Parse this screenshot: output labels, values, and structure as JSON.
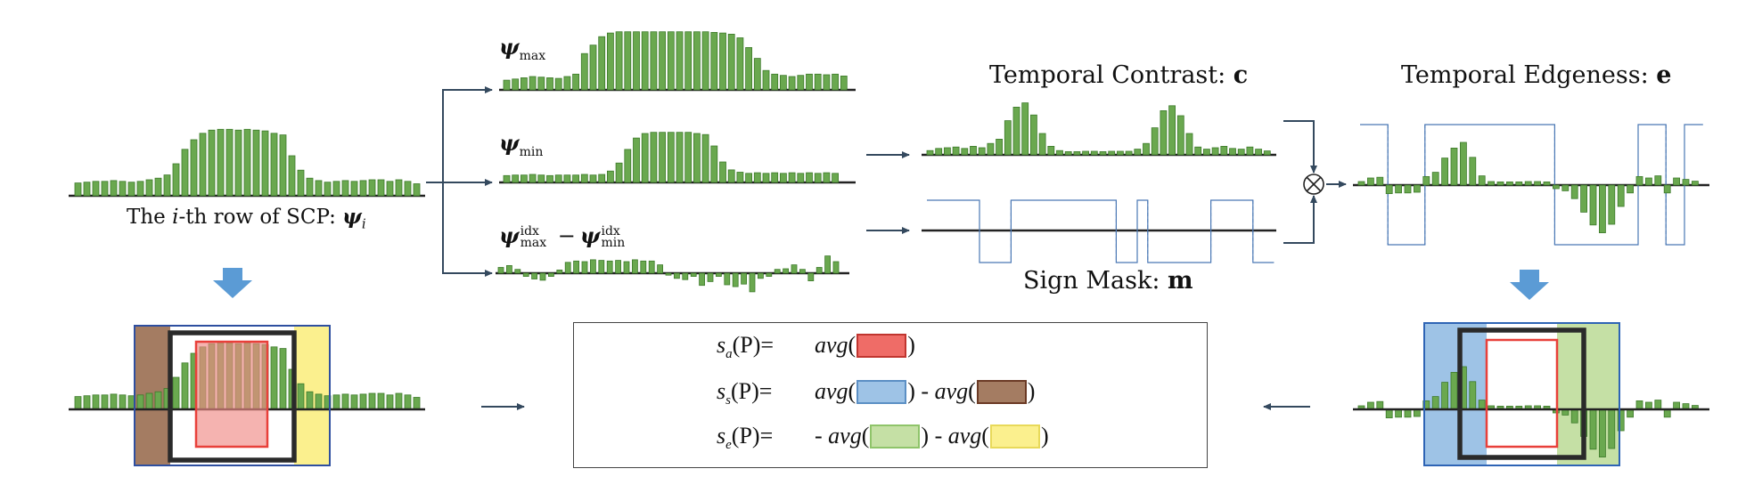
{
  "labels": {
    "row_caption_prefix": "The ",
    "row_caption_i": "i",
    "row_caption_suffix": "-th row of SCP: ",
    "row_caption_psi": "ψ",
    "row_caption_psi_sub": "i",
    "psi_symbol": "ψ",
    "psi_max_sub": "max",
    "psi_min_sub": "min",
    "psi_idx_sup": "idx",
    "minus": "−",
    "temporal_contrast": "Temporal Contrast: ",
    "temporal_contrast_symbol": "c",
    "temporal_edgeness": "Temporal Edgeness: ",
    "temporal_edgeness_symbol": "e",
    "sign_mask": "Sign Mask: ",
    "sign_mask_symbol": "m",
    "otimes": "⊗"
  },
  "formulas": {
    "sa_lhs_s": "s",
    "sa_lhs_sub": "a",
    "ss_lhs_sub": "s",
    "se_lhs_sub": "e",
    "lhs_arg": "(P)=",
    "avg": "avg",
    "open": "(",
    "close": ")",
    "minus": " - ",
    "neg": "- "
  },
  "colors": {
    "bar_green": "#6aa84f",
    "bar_stroke": "#3d7a2a",
    "arrow_dark": "#34495e",
    "arrow_blue": "#5b9bd5",
    "mask_line": "#4a78b5",
    "red_box": "#e8403a",
    "red_fill": "#f08a86",
    "blue_fill": "#9ec3e6",
    "blue_edge": "#2e64b5",
    "brown_fill": "#a47c62",
    "green_fill": "#c5e0a5",
    "yellow_fill": "#fbf08e",
    "dark_box": "#2a2a2a"
  },
  "signals": {
    "psi_row": [
      1.6,
      1.7,
      1.8,
      1.8,
      1.9,
      1.8,
      1.7,
      1.8,
      2.0,
      2.2,
      2.6,
      4.0,
      5.8,
      7.0,
      7.8,
      8.2,
      8.3,
      8.3,
      8.2,
      8.3,
      8.2,
      8.1,
      7.8,
      7.6,
      5.0,
      3.2,
      2.2,
      1.9,
      1.7,
      1.8,
      1.9,
      1.8,
      1.9,
      2.0,
      2.0,
      1.8,
      2.0,
      1.8,
      1.5
    ],
    "psi_max": [
      1.6,
      1.8,
      2.0,
      2.2,
      2.1,
      2.0,
      1.9,
      2.2,
      2.6,
      6.0,
      7.4,
      8.8,
      9.4,
      9.6,
      9.6,
      9.6,
      9.6,
      9.6,
      9.6,
      9.6,
      9.6,
      9.6,
      9.6,
      9.6,
      9.5,
      9.4,
      9.2,
      8.6,
      7.0,
      5.2,
      3.2,
      2.6,
      2.4,
      2.2,
      2.4,
      2.6,
      2.6,
      2.5,
      2.6,
      2.3
    ],
    "psi_min": [
      1.2,
      1.3,
      1.3,
      1.4,
      1.3,
      1.2,
      1.3,
      1.3,
      1.3,
      1.4,
      1.3,
      1.4,
      2.0,
      3.4,
      5.8,
      7.8,
      8.6,
      8.8,
      8.8,
      8.8,
      8.8,
      8.8,
      8.6,
      8.4,
      6.4,
      3.6,
      2.2,
      1.8,
      1.6,
      1.7,
      1.6,
      1.7,
      1.6,
      1.7,
      1.6,
      1.7,
      1.6,
      1.7,
      1.6
    ],
    "psi_idx": [
      1.8,
      2.4,
      1.2,
      -1.0,
      -1.8,
      -2.2,
      -1.0,
      1.0,
      3.4,
      3.8,
      3.6,
      4.2,
      4.0,
      3.8,
      4.0,
      3.6,
      4.2,
      3.8,
      3.8,
      2.6,
      -0.6,
      -1.6,
      -2.0,
      -1.0,
      -3.8,
      -2.6,
      -1.0,
      -3.6,
      -4.2,
      -3.4,
      -5.8,
      -1.6,
      -1.0,
      1.2,
      1.4,
      2.6,
      1.2,
      -2.4,
      1.8,
      5.4,
      3.6
    ],
    "contrast": [
      1.2,
      1.8,
      2.0,
      2.2,
      1.8,
      2.4,
      2.0,
      3.2,
      4.4,
      9.6,
      13.4,
      14.6,
      11.2,
      6.0,
      2.4,
      1.2,
      0.9,
      0.9,
      1.0,
      1.0,
      0.9,
      1.0,
      1.0,
      1.0,
      1.6,
      3.2,
      7.6,
      12.4,
      13.8,
      11.0,
      6.0,
      2.2,
      1.6,
      2.0,
      2.4,
      1.8,
      1.6,
      2.2,
      1.6,
      1.1
    ],
    "mask": [
      1,
      1,
      1,
      1,
      1,
      -1,
      -1,
      -1,
      1,
      1,
      1,
      1,
      1,
      1,
      1,
      1,
      1,
      1,
      -1,
      -1,
      1,
      -1,
      -1,
      -1,
      -1,
      -1,
      -1,
      1,
      1,
      1,
      1,
      -1,
      -1
    ],
    "edge": [
      1.0,
      2.0,
      2.2,
      -2.4,
      -2.2,
      -2.2,
      -2.0,
      2.4,
      3.6,
      7.6,
      10.4,
      12.0,
      7.8,
      2.6,
      1.0,
      0.9,
      0.9,
      0.9,
      1.0,
      1.0,
      0.9,
      -1.0,
      -1.6,
      -3.8,
      -7.6,
      -11.2,
      -13.4,
      -11.0,
      -6.0,
      -2.2,
      2.4,
      2.0,
      2.6,
      -2.2,
      2.0,
      1.6,
      1.1
    ],
    "edge_mask": [
      1,
      1,
      1,
      -1,
      -1,
      -1,
      -1,
      1,
      1,
      1,
      1,
      1,
      1,
      1,
      1,
      1,
      1,
      1,
      1,
      1,
      1,
      -1,
      -1,
      -1,
      -1,
      -1,
      -1,
      -1,
      -1,
      -1,
      1,
      1,
      1,
      -1,
      -1,
      1,
      1
    ]
  }
}
